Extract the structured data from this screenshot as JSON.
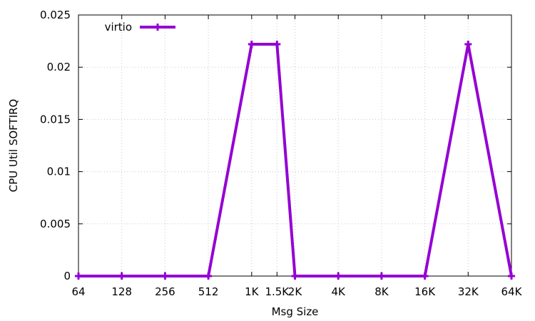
{
  "chart_data": {
    "type": "line",
    "title": "",
    "xlabel": "Msg Size",
    "ylabel": "CPU Util SOFTIRQ",
    "categories": [
      "64",
      "128",
      "256",
      "512",
      "1K",
      "1.5K",
      "2K",
      "4K",
      "8K",
      "16K",
      "32K",
      "64K"
    ],
    "x_positions": [
      6,
      7,
      8,
      9,
      10,
      10.585,
      11,
      12,
      13,
      14,
      15,
      16
    ],
    "ylim": [
      0,
      0.025
    ],
    "yticks": [
      "0",
      "0.005",
      "0.01",
      "0.015",
      "0.02",
      "0.025"
    ],
    "grid": true,
    "legend_position": "top-left",
    "series": [
      {
        "name": "virtio",
        "color": "#9400d3",
        "marker": "plus",
        "values": [
          0,
          0,
          0,
          0,
          0.0222,
          0.0222,
          0,
          0,
          0,
          0,
          0.0222,
          0
        ]
      }
    ]
  }
}
